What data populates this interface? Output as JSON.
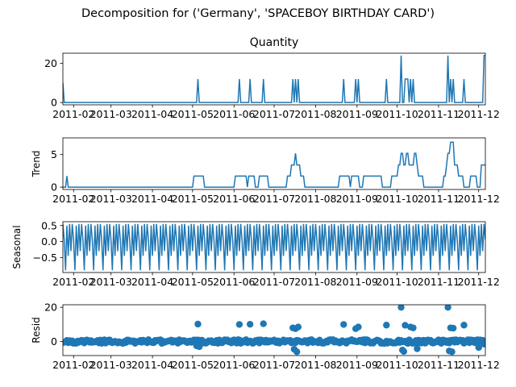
{
  "suptitle": "Decomposition for ('Germany', 'SPACEBOY BIRTHDAY CARD')",
  "colors": {
    "line": "#1f77b4",
    "point": "#1f77b4",
    "axis": "#000000",
    "zero": "#000000"
  },
  "chart_data": [
    {
      "type": "line",
      "title": "Quantity",
      "ylabel": "",
      "ylim": [
        -1.2,
        25.2
      ],
      "yticks": [
        0,
        20
      ],
      "xlim": [
        "2011-01-24",
        "2011-12-06"
      ],
      "xticks": [
        "2011-02",
        "2011-03",
        "2011-04",
        "2011-05",
        "2011-06",
        "2011-07",
        "2011-08",
        "2011-09",
        "2011-10",
        "2011-11",
        "2011-12"
      ],
      "grid": false,
      "series": [
        {
          "x": [
            "2011-01-24",
            "2011-01-25",
            "2011-05-04",
            "2011-05-05",
            "2011-05-06",
            "2011-06-04",
            "2011-06-05",
            "2011-06-06",
            "2011-06-12",
            "2011-06-13",
            "2011-06-14",
            "2011-06-22",
            "2011-06-23",
            "2011-06-24",
            "2011-07-14",
            "2011-07-15",
            "2011-07-16",
            "2011-07-17",
            "2011-07-18",
            "2011-07-19",
            "2011-07-20",
            "2011-08-21",
            "2011-08-22",
            "2011-08-23",
            "2011-08-30",
            "2011-08-31",
            "2011-09-01",
            "2011-09-02",
            "2011-09-03",
            "2011-09-04",
            "2011-09-22",
            "2011-09-23",
            "2011-09-24",
            "2011-10-03",
            "2011-10-04",
            "2011-10-05",
            "2011-10-06",
            "2011-10-07",
            "2011-10-10",
            "2011-10-11",
            "2011-10-12",
            "2011-10-13",
            "2011-10-14",
            "2011-11-07",
            "2011-11-08",
            "2011-11-09",
            "2011-11-10",
            "2011-11-11",
            "2011-11-12",
            "2011-11-13",
            "2011-11-19",
            "2011-11-20",
            "2011-11-21",
            "2011-12-04",
            "2011-12-05"
          ],
          "y": [
            10,
            0,
            0,
            12,
            0,
            0,
            12,
            0,
            0,
            12,
            0,
            0,
            12,
            0,
            0,
            12,
            0,
            12,
            0,
            12,
            0,
            0,
            12,
            0,
            0,
            12,
            0,
            12,
            0,
            0,
            0,
            12,
            0,
            0,
            24,
            0,
            0,
            12,
            0,
            12,
            0,
            12,
            0,
            0,
            24,
            0,
            12,
            0,
            12,
            0,
            0,
            12,
            0,
            0,
            24
          ]
        }
      ]
    },
    {
      "type": "line",
      "title": "",
      "ylabel": "Trend",
      "ylim": [
        -0.36,
        7.56
      ],
      "yticks": [
        0,
        5
      ],
      "xlim": [
        "2011-01-24",
        "2011-12-06"
      ],
      "xticks": [
        "2011-02",
        "2011-03",
        "2011-04",
        "2011-05",
        "2011-06",
        "2011-07",
        "2011-08",
        "2011-09",
        "2011-10",
        "2011-11",
        "2011-12"
      ],
      "grid": false,
      "series": [
        {
          "x": [
            "2011-01-27",
            "2011-01-28",
            "2011-05-01",
            "2011-05-02",
            "2011-05-09",
            "2011-05-10",
            "2011-06-01",
            "2011-06-02",
            "2011-06-09",
            "2011-06-10",
            "2011-06-11",
            "2011-06-12",
            "2011-06-16",
            "2011-06-17",
            "2011-06-19",
            "2011-06-20",
            "2011-06-26",
            "2011-06-27",
            "2011-07-10",
            "2011-07-11",
            "2011-07-13",
            "2011-07-14",
            "2011-07-16",
            "2011-07-17",
            "2011-07-18",
            "2011-07-20",
            "2011-07-21",
            "2011-07-23",
            "2011-07-24",
            "2011-08-18",
            "2011-08-19",
            "2011-08-26",
            "2011-08-27",
            "2011-08-28",
            "2011-08-30",
            "2011-09-03",
            "2011-09-05",
            "2011-09-06",
            "2011-09-19",
            "2011-09-20",
            "2011-09-26",
            "2011-09-27",
            "2011-10-01",
            "2011-10-02",
            "2011-10-04",
            "2011-10-06",
            "2011-10-08",
            "2011-10-10",
            "2011-10-12",
            "2011-10-14",
            "2011-10-16",
            "2011-10-17",
            "2011-10-20",
            "2011-10-21",
            "2011-11-04",
            "2011-11-05",
            "2011-11-07",
            "2011-11-08",
            "2011-11-10",
            "2011-11-11",
            "2011-11-13",
            "2011-11-15",
            "2011-11-16",
            "2011-11-19",
            "2011-11-20",
            "2011-11-23",
            "2011-11-25",
            "2011-11-28",
            "2011-11-30",
            "2011-12-01",
            "2011-12-03"
          ],
          "y": [
            1.7,
            0,
            0,
            1.7,
            1.7,
            0,
            0,
            1.7,
            1.7,
            1.7,
            0,
            1.7,
            1.7,
            0,
            0,
            1.7,
            1.7,
            0,
            0,
            1.7,
            1.7,
            3.4,
            3.4,
            5.2,
            3.4,
            3.4,
            1.7,
            1.7,
            0,
            0,
            1.7,
            1.7,
            0,
            1.7,
            1.7,
            0,
            0,
            1.7,
            1.7,
            0,
            0,
            1.7,
            1.7,
            3.4,
            5.2,
            3.4,
            5.2,
            3.4,
            3.4,
            5.2,
            3.4,
            1.7,
            1.7,
            0,
            0,
            1.7,
            3.4,
            5.2,
            6.9,
            6.9,
            3.4,
            3.4,
            1.7,
            1.7,
            0,
            0,
            1.7,
            1.7,
            0,
            0,
            3.4
          ]
        }
      ]
    },
    {
      "type": "line",
      "title": "",
      "ylabel": "Seasonal",
      "ylim": [
        -0.97,
        0.62
      ],
      "yticks": [
        -0.5,
        0.0,
        0.5
      ],
      "ytick_labels": [
        "−0.5",
        "0.0",
        "0.5"
      ],
      "xlim": [
        "2011-01-24",
        "2011-12-06"
      ],
      "xticks": [
        "2011-02",
        "2011-03",
        "2011-04",
        "2011-05",
        "2011-06",
        "2011-07",
        "2011-08",
        "2011-09",
        "2011-10",
        "2011-11",
        "2011-12"
      ],
      "grid": false,
      "period": 7,
      "pattern": [
        0.55,
        0.05,
        -0.9,
        0.5,
        -0.45,
        0.55,
        -0.3
      ]
    },
    {
      "type": "scatter",
      "title": "",
      "ylabel": "Resid",
      "ylim": [
        -8.2,
        21.5
      ],
      "yticks": [
        0,
        20
      ],
      "xlim": [
        "2011-01-24",
        "2011-12-06"
      ],
      "xticks": [
        "2011-02",
        "2011-03",
        "2011-04",
        "2011-05",
        "2011-06",
        "2011-07",
        "2011-08",
        "2011-09",
        "2011-10",
        "2011-11",
        "2011-12"
      ],
      "grid": false,
      "zero_line": true,
      "series": [
        {
          "x": [
            "2011-05-05",
            "2011-06-05",
            "2011-06-13",
            "2011-06-23",
            "2011-07-15",
            "2011-07-17",
            "2011-07-19",
            "2011-08-22",
            "2011-08-31",
            "2011-09-02",
            "2011-09-23",
            "2011-10-04",
            "2011-10-07",
            "2011-10-11",
            "2011-10-13",
            "2011-11-08",
            "2011-11-10",
            "2011-11-12",
            "2011-11-20",
            "2011-12-05",
            "2011-07-16",
            "2011-07-18",
            "2011-10-05",
            "2011-10-06",
            "2011-10-16",
            "2011-11-09",
            "2011-11-11",
            "2011-12-01",
            "2011-05-04",
            "2011-05-06"
          ],
          "y": [
            10.2,
            10,
            10.1,
            10.4,
            8,
            7.5,
            8.5,
            10,
            7.5,
            8.5,
            9.6,
            20,
            9.5,
            8.5,
            8,
            20,
            8,
            7.8,
            9.6,
            -1.5,
            -4.5,
            -6,
            -5,
            -5.8,
            -4.2,
            -5.5,
            -6,
            -3.5,
            -2.5,
            -3
          ]
        }
      ]
    }
  ]
}
